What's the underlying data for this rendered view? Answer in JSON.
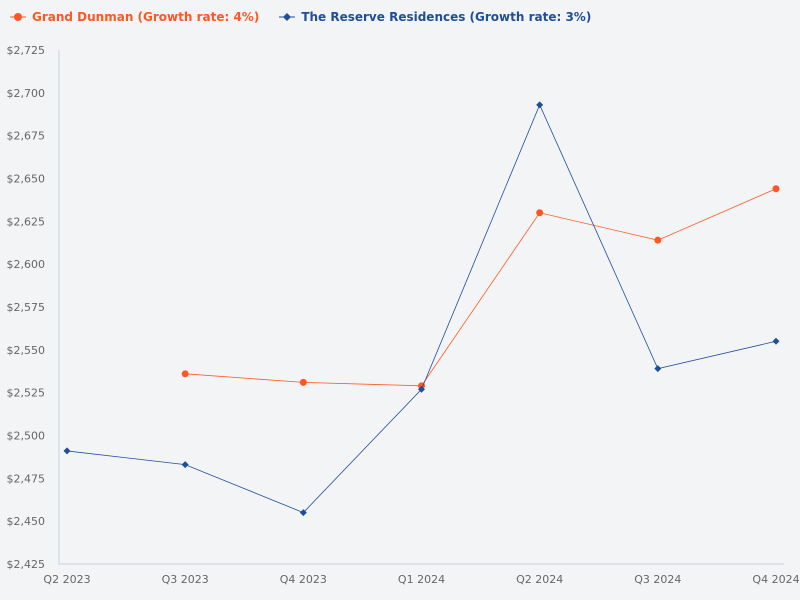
{
  "chart_data": {
    "type": "line",
    "categories": [
      "Q2 2023",
      "Q3 2023",
      "Q4 2023",
      "Q1 2024",
      "Q2 2024",
      "Q3 2024",
      "Q4 2024"
    ],
    "ylim": [
      2425,
      2725
    ],
    "yticks": [
      2425,
      2450,
      2475,
      2500,
      2525,
      2550,
      2575,
      2600,
      2625,
      2650,
      2675,
      2700,
      2725
    ],
    "ytick_labels": [
      "$2,425",
      "$2,450",
      "$2,475",
      "$2,500",
      "$2,525",
      "$2,550",
      "$2,575",
      "$2,600",
      "$2,625",
      "$2,650",
      "$2,675",
      "$2,700",
      "$2,725"
    ],
    "grid": false,
    "legend_position": "top-left",
    "series": [
      {
        "name": "Grand Dunman (Growth rate: 4%)",
        "color": "#ff5722",
        "marker": "circle",
        "values": [
          null,
          2536,
          2531,
          2529,
          2630,
          2614,
          2644
        ]
      },
      {
        "name": "The Reserve Residences (Growth rate: 3%)",
        "color": "#1f4e9c",
        "marker": "diamond",
        "values": [
          2491,
          2483,
          2455,
          2527,
          2693,
          2539,
          2555
        ]
      }
    ]
  }
}
